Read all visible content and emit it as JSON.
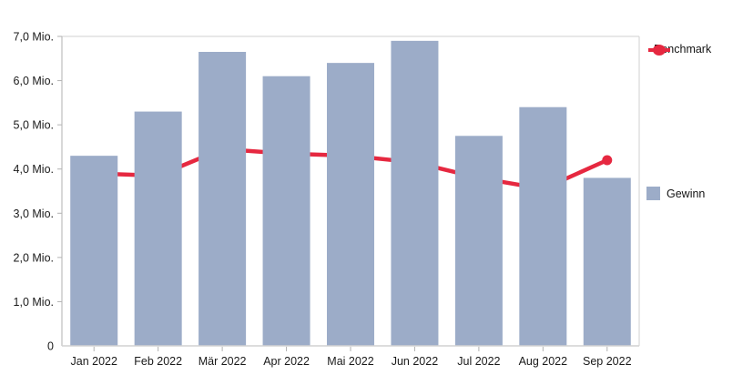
{
  "chart_data": {
    "type": "bar",
    "subtype": "combo-bar-line",
    "categories": [
      "Jan 2022",
      "Feb 2022",
      "Mär 2022",
      "Apr 2022",
      "Mai 2022",
      "Jun 2022",
      "Jul 2022",
      "Aug 2022",
      "Sep 2022"
    ],
    "series": [
      {
        "name": "Gewinn",
        "type": "bar",
        "color": "#9CACC8",
        "values": [
          4.3,
          5.3,
          6.65,
          6.1,
          6.4,
          6.9,
          4.75,
          5.4,
          3.8
        ]
      },
      {
        "name": "Benchmark",
        "type": "line",
        "color": "#E62840",
        "end_marker": "dot",
        "values": [
          3.9,
          3.85,
          4.45,
          4.35,
          4.3,
          4.15,
          3.8,
          3.55,
          4.2
        ]
      }
    ],
    "title": "",
    "xlabel": "",
    "ylabel": "",
    "y_axis": {
      "min": 0,
      "max": 7,
      "tick_interval": 1,
      "unit": "Mio.",
      "tick_labels": [
        "0",
        "1,0 Mio.",
        "2,0 Mio.",
        "3,0 Mio.",
        "4,0 Mio.",
        "5,0 Mio.",
        "6,0 Mio.",
        "7,0 Mio."
      ]
    },
    "grid": "off",
    "line_behind_bars": true,
    "legend": {
      "position": "right",
      "items": [
        {
          "label": "Benchmark",
          "marker": "line-dot",
          "color": "#E62840"
        },
        {
          "label": "Gewinn",
          "marker": "square",
          "color": "#9CACC8"
        }
      ]
    }
  }
}
